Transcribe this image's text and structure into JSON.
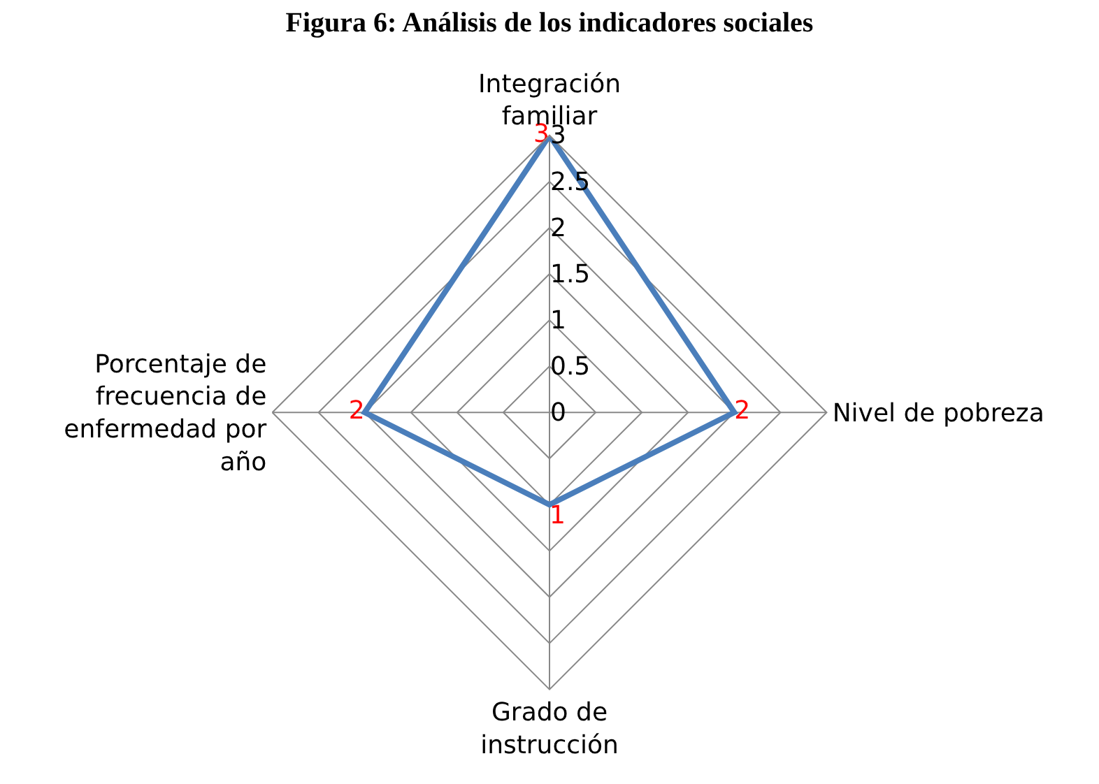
{
  "chart_data": {
    "type": "radar",
    "title": "Figura 6: Análisis de los indicadores sociales",
    "categories": [
      "Integración familiar",
      "Nivel de pobreza",
      "Grado de instrucción",
      "Porcentaje de frecuencia de enfermedad por año"
    ],
    "series": [
      {
        "color": "#4a7ebb",
        "values": [
          3,
          2,
          1,
          2
        ]
      }
    ],
    "ylim": [
      0,
      3
    ],
    "yticks": [
      0,
      0.5,
      1,
      1.5,
      2,
      2.5,
      3
    ],
    "data_labels": true,
    "grid": true
  }
}
